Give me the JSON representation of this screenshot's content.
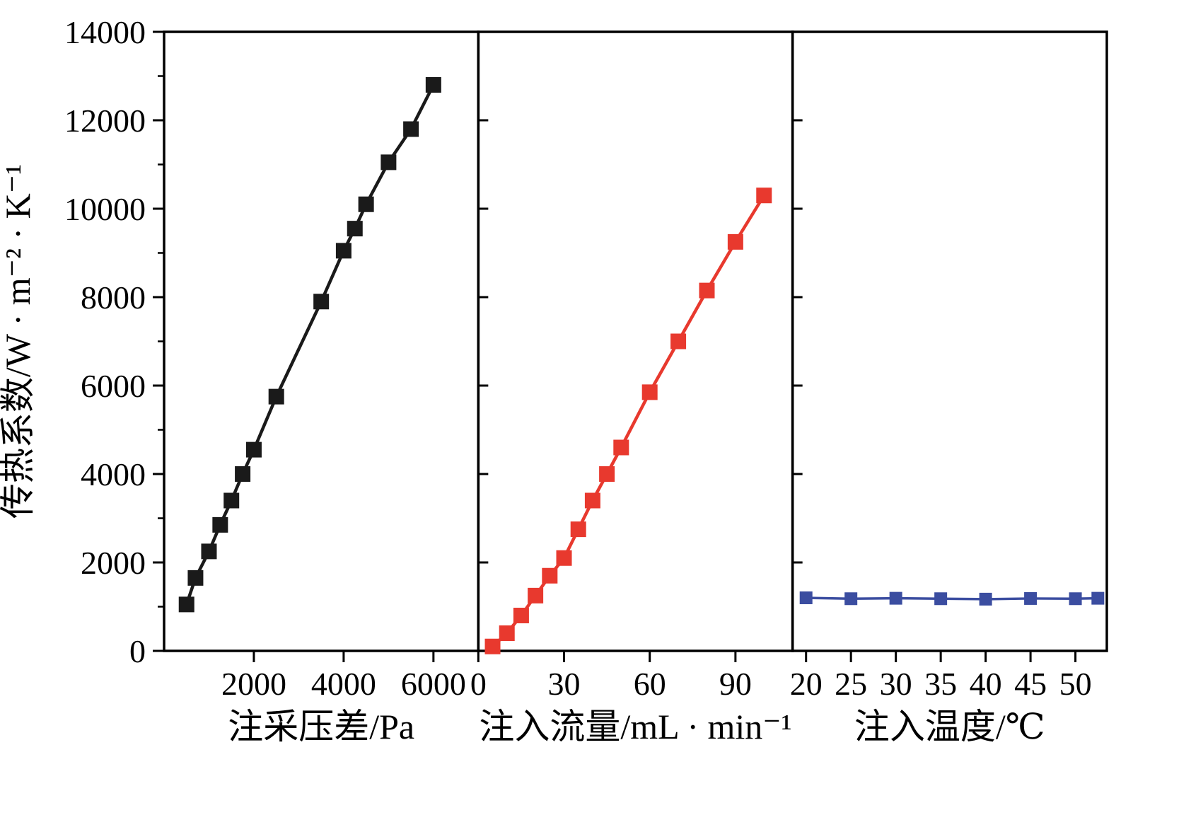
{
  "figure": {
    "background": "#ffffff"
  },
  "chart_data": {
    "type": "line",
    "title": "",
    "ylabel": "传热系数/W · m⁻² · K⁻¹",
    "ylim": [
      0,
      14000
    ],
    "yticks": [
      0,
      2000,
      4000,
      6000,
      8000,
      10000,
      12000,
      14000
    ],
    "y_minor_step": 1000,
    "grid": false,
    "legend": "none",
    "panels": [
      {
        "id": "pressure",
        "xlabel": "注采压差/Pa",
        "xlim": [
          0,
          7000
        ],
        "xticks": [
          2000,
          4000,
          6000
        ],
        "color": "#1a1a1a",
        "marker": "square",
        "x": [
          500,
          700,
          1000,
          1250,
          1500,
          1750,
          2000,
          2500,
          3500,
          4000,
          4250,
          4500,
          5000,
          5500,
          6000
        ],
        "y": [
          1050,
          1650,
          2250,
          2850,
          3400,
          4000,
          4550,
          5750,
          7900,
          9050,
          9550,
          10100,
          11050,
          11800,
          12800
        ]
      },
      {
        "id": "flow",
        "xlabel": "注入流量/mL · min⁻¹",
        "xlim": [
          0,
          110
        ],
        "xticks": [
          0,
          30,
          60,
          90
        ],
        "color": "#e8392e",
        "marker": "square",
        "x": [
          5,
          10,
          15,
          20,
          25,
          30,
          35,
          40,
          45,
          50,
          60,
          70,
          80,
          90,
          100
        ],
        "y": [
          100,
          400,
          800,
          1250,
          1700,
          2100,
          2750,
          3400,
          4000,
          4600,
          5850,
          7000,
          8150,
          9250,
          10300
        ]
      },
      {
        "id": "temperature",
        "xlabel": "注入温度/℃",
        "xlim": [
          18.5,
          53.5
        ],
        "xticks": [
          20,
          25,
          30,
          35,
          40,
          45,
          50
        ],
        "color": "#3b4da0",
        "marker": "square",
        "x": [
          20,
          25,
          30,
          35,
          40,
          45,
          50,
          52.5
        ],
        "y": [
          1200,
          1180,
          1190,
          1180,
          1170,
          1185,
          1180,
          1190
        ]
      }
    ]
  }
}
